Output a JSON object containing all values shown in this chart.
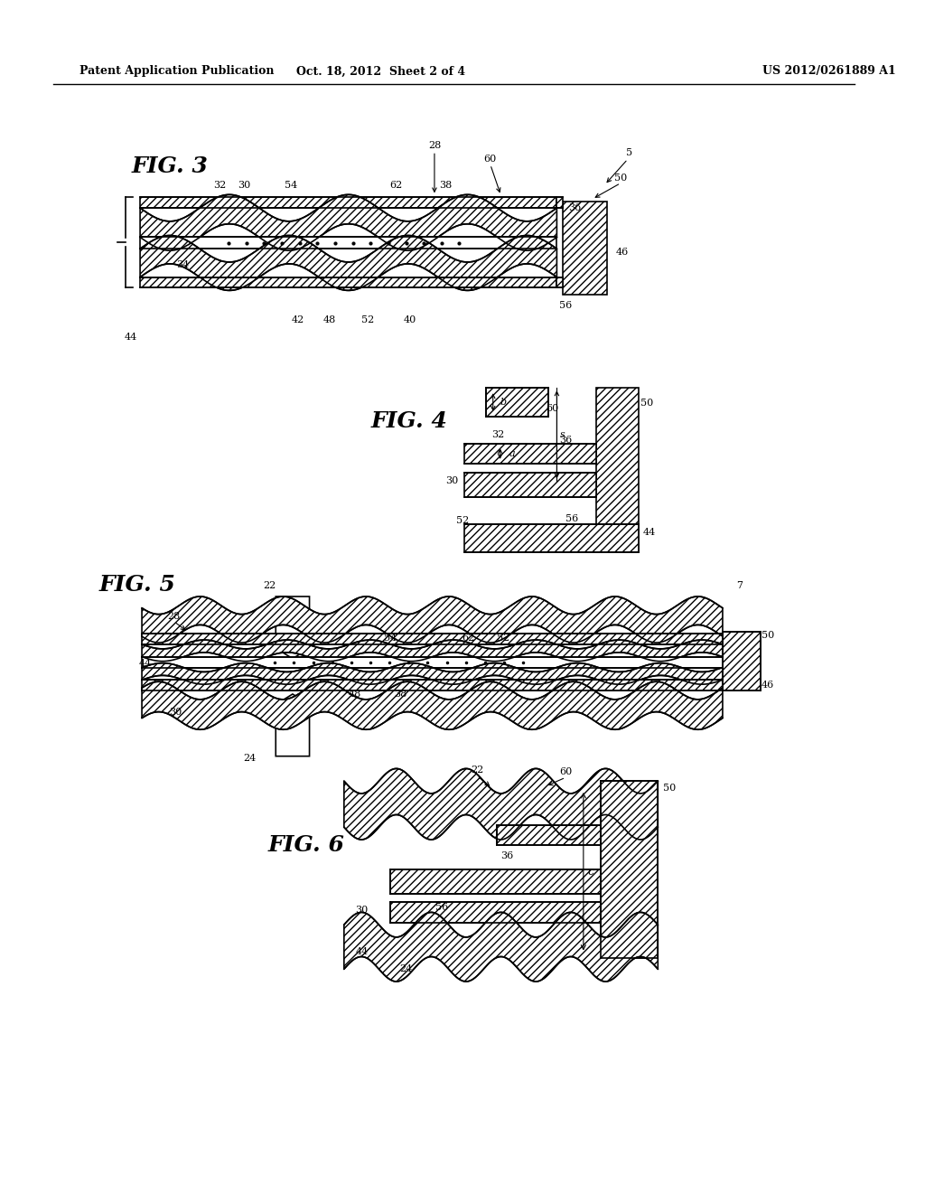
{
  "header_left": "Patent Application Publication",
  "header_center": "Oct. 18, 2012  Sheet 2 of 4",
  "header_right": "US 2012/0261889 A1",
  "bg_color": "#ffffff",
  "line_color": "#000000",
  "fig3_label": "FIG. 3",
  "fig4_label": "FIG. 4",
  "fig5_label": "FIG. 5",
  "fig6_label": "FIG. 6"
}
